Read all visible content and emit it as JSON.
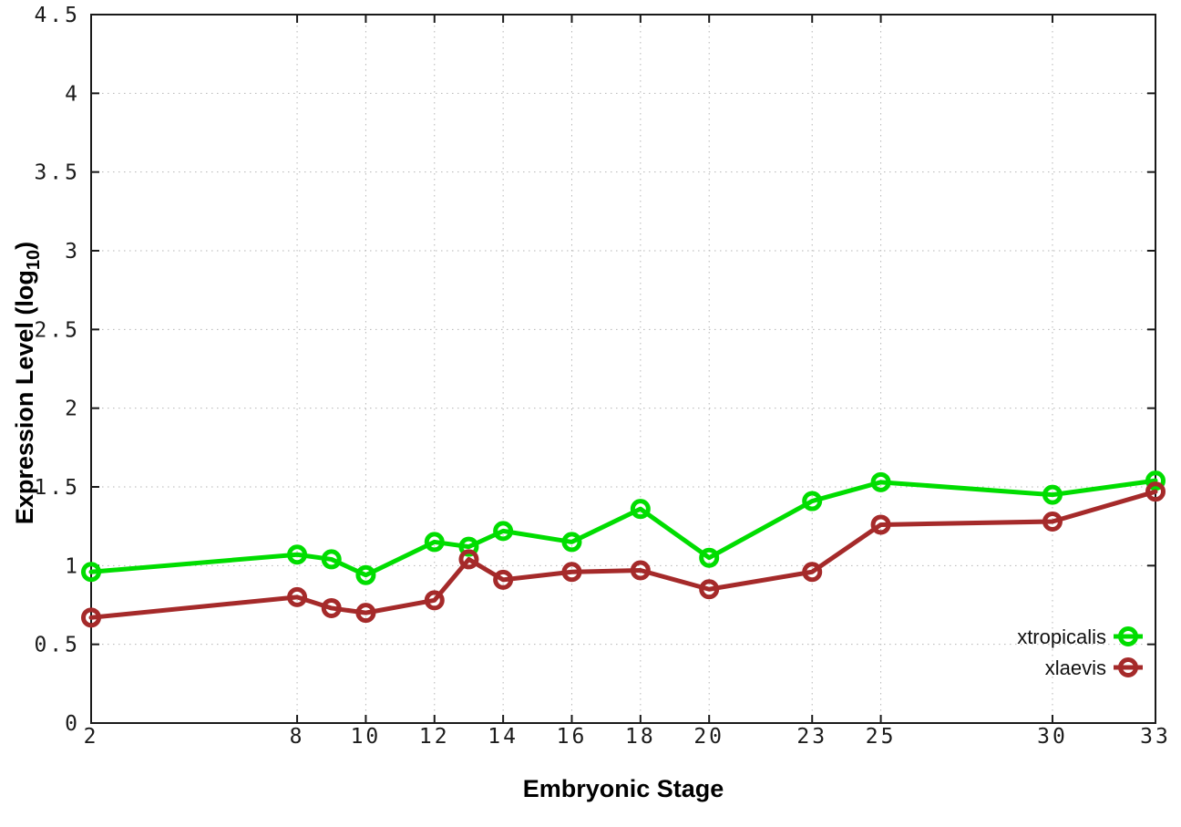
{
  "chart_data": {
    "type": "line",
    "title": "",
    "xlabel": "Embryonic Stage",
    "ylabel": "Expression Level (log10)",
    "ylabel_rich": {
      "pre": "Expression Level (log",
      "sub": "10",
      "post": ")"
    },
    "xlim": [
      2,
      33
    ],
    "ylim": [
      0,
      4.5
    ],
    "xticks": [
      2,
      8,
      10,
      12,
      14,
      16,
      18,
      20,
      23,
      25,
      30,
      33
    ],
    "yticks": [
      0,
      0.5,
      1,
      1.5,
      2,
      2.5,
      3,
      3.5,
      4,
      4.5
    ],
    "grid": true,
    "legend_position": "inside-bottom-right",
    "x": [
      2,
      8,
      9,
      10,
      12,
      13,
      14,
      16,
      18,
      20,
      23,
      25,
      30,
      33
    ],
    "series": [
      {
        "name": "xtropicalis",
        "color": "#00dd00",
        "values": [
          0.96,
          1.07,
          1.04,
          0.94,
          1.15,
          1.12,
          1.22,
          1.15,
          1.36,
          1.05,
          1.41,
          1.53,
          1.45,
          1.54
        ]
      },
      {
        "name": "xlaevis",
        "color": "#a52a2a",
        "values": [
          0.67,
          0.8,
          0.73,
          0.7,
          0.78,
          1.04,
          0.91,
          0.96,
          0.97,
          0.85,
          0.96,
          1.26,
          1.28,
          1.47
        ]
      }
    ],
    "style": {
      "border_color": "#1a1a1a",
      "grid_color": "#b5b5b5",
      "tick_text_color": "#1c1c1c"
    }
  }
}
